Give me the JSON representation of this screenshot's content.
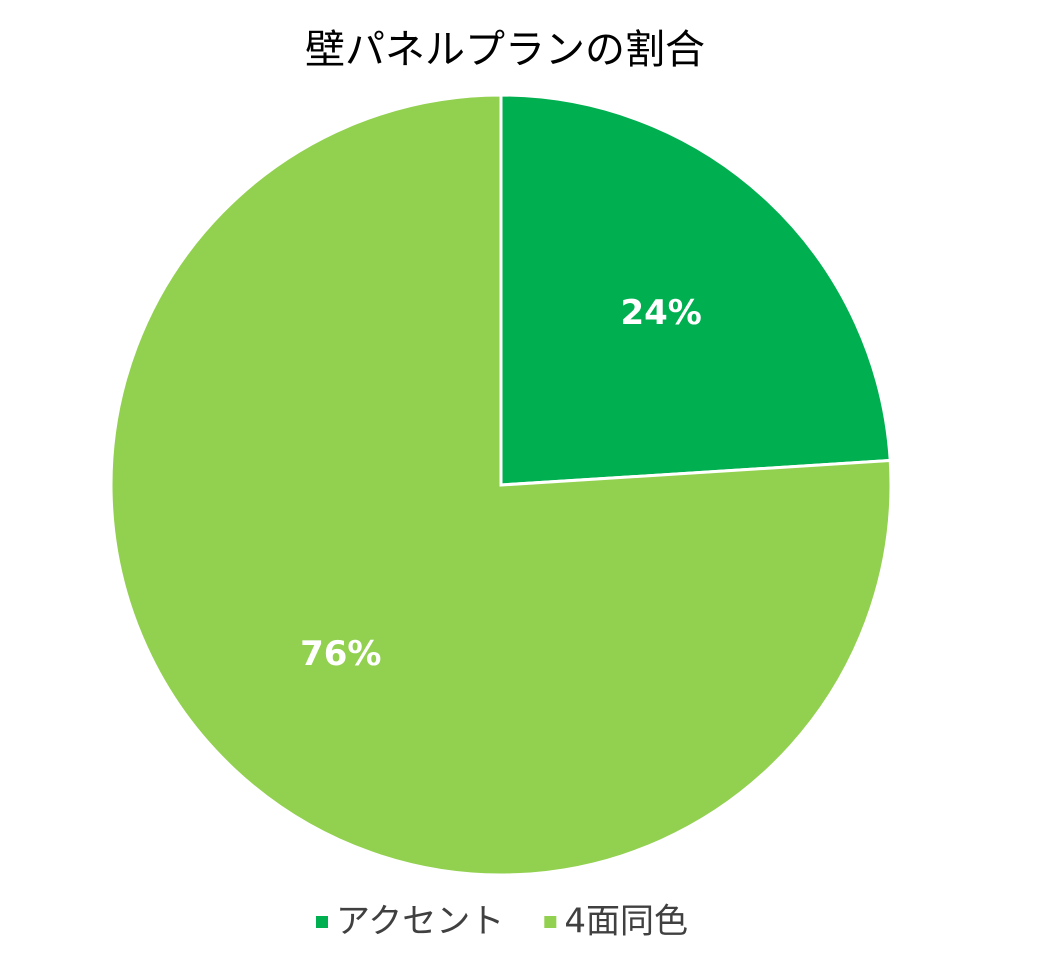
{
  "chart_data": {
    "type": "pie",
    "title": "壁パネルプランの割合",
    "categories": [
      "アクセント",
      "4面同色"
    ],
    "values": [
      24,
      76
    ],
    "value_labels": [
      "24%",
      "76%"
    ],
    "colors": [
      "#00b050",
      "#92d050"
    ],
    "legend": "bottom"
  }
}
